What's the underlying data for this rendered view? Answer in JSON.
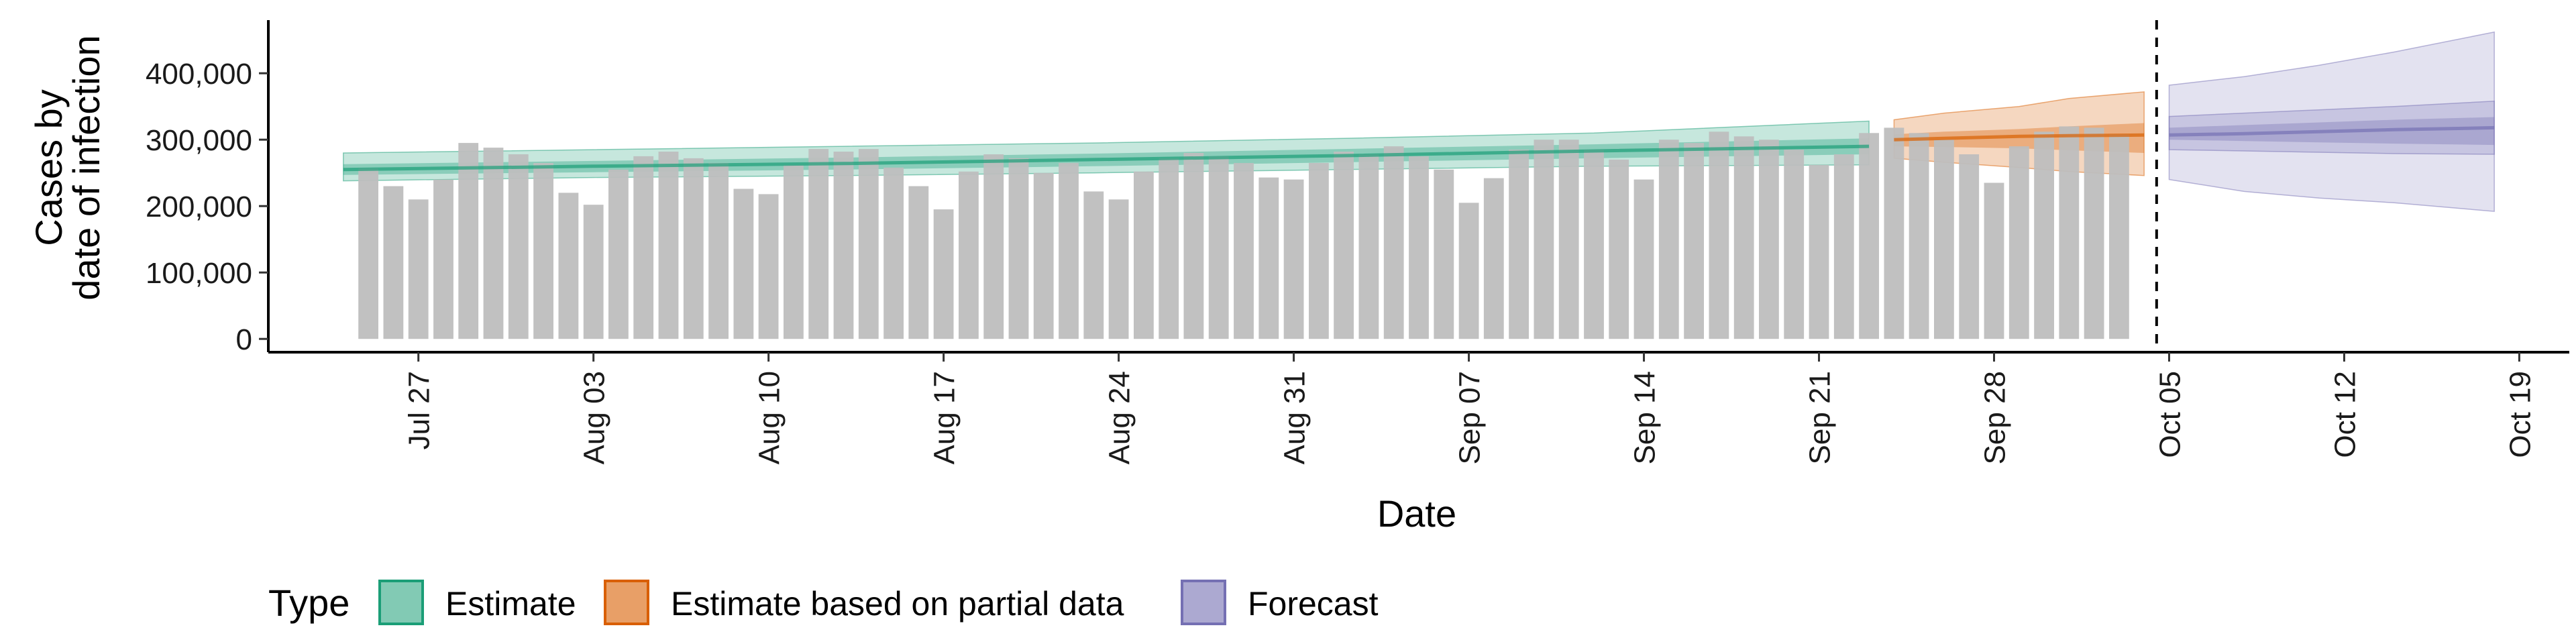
{
  "chart_data": {
    "type": "bar",
    "xlabel": "Date",
    "ylabel_line1": "Cases by",
    "ylabel_line2": "date of infection",
    "x_start": "2020-07-25",
    "x_range": [
      "2020-07-21",
      "2020-10-21"
    ],
    "ylim": [
      -20000,
      480000
    ],
    "y_ticks": [
      0,
      100000,
      200000,
      300000,
      400000
    ],
    "y_tick_labels": [
      "0",
      "100,000",
      "200,000",
      "300,000",
      "400,000"
    ],
    "x_ticks": [
      "2020-07-27",
      "2020-08-03",
      "2020-08-10",
      "2020-08-17",
      "2020-08-24",
      "2020-08-31",
      "2020-09-07",
      "2020-09-14",
      "2020-09-21",
      "2020-09-28",
      "2020-10-05",
      "2020-10-12",
      "2020-10-19"
    ],
    "x_tick_labels": [
      "Jul 27",
      "Aug 03",
      "Aug 10",
      "Aug 17",
      "Aug 24",
      "Aug 31",
      "Sep 07",
      "Sep 14",
      "Sep 21",
      "Sep 28",
      "Oct 05",
      "Oct 12",
      "Oct 19"
    ],
    "cases": [
      257000,
      230000,
      210000,
      240000,
      295000,
      288000,
      278000,
      265000,
      220000,
      202000,
      255000,
      275000,
      282000,
      272000,
      265000,
      226000,
      218000,
      262000,
      286000,
      282000,
      286000,
      258000,
      230000,
      195000,
      252000,
      278000,
      272000,
      250000,
      265000,
      222000,
      210000,
      252000,
      272000,
      280000,
      275000,
      265000,
      243000,
      240000,
      265000,
      282000,
      278000,
      290000,
      275000,
      255000,
      205000,
      242000,
      285000,
      300000,
      300000,
      285000,
      270000,
      240000,
      300000,
      295000,
      312000,
      305000,
      300000,
      285000,
      262000,
      278000,
      310000,
      318000,
      310000,
      300000,
      278000,
      235000,
      290000,
      312000,
      320000,
      318000,
      308000
    ],
    "forecast_cutoff": "2020-10-04",
    "legend_title": "Type",
    "legend_position": "bottom",
    "colors": {
      "bars": "#bebebe",
      "estimate": "#1b9e77",
      "estimate_partial": "#d95f02",
      "forecast": "#7570b3"
    },
    "series": [
      {
        "name": "Estimate",
        "start": "2020-07-24",
        "end": "2020-09-23",
        "median": [
          255000,
          260000,
          264000,
          270000,
          276000,
          283000,
          290000
        ],
        "inner": [
          [
            247000,
            263000
          ],
          [
            251000,
            268000
          ],
          [
            255000,
            273000
          ],
          [
            260000,
            279000
          ],
          [
            266000,
            286000
          ],
          [
            272000,
            293000
          ],
          [
            278000,
            302000
          ]
        ],
        "outer": [
          [
            238000,
            280000
          ],
          [
            243000,
            285000
          ],
          [
            246000,
            290000
          ],
          [
            250000,
            295000
          ],
          [
            255000,
            302000
          ],
          [
            260000,
            310000
          ],
          [
            262000,
            328000
          ]
        ]
      },
      {
        "name": "Estimate based on partial data",
        "start": "2020-09-24",
        "end": "2020-10-04",
        "median": [
          300000,
          302000,
          305000,
          306000,
          307000
        ],
        "inner": [
          [
            290000,
            308000
          ],
          [
            289000,
            312000
          ],
          [
            287000,
            316000
          ],
          [
            284000,
            320000
          ],
          [
            280000,
            325000
          ]
        ],
        "outer": [
          [
            272000,
            330000
          ],
          [
            266000,
            340000
          ],
          [
            258000,
            350000
          ],
          [
            252000,
            362000
          ],
          [
            246000,
            372000
          ]
        ]
      },
      {
        "name": "Forecast",
        "start": "2020-10-05",
        "end": "2020-10-18",
        "median": [
          307000,
          309000,
          312000,
          315000,
          318000
        ],
        "inner": [
          [
            300000,
            318000
          ],
          [
            298000,
            322000
          ],
          [
            296000,
            326000
          ],
          [
            294000,
            330000
          ],
          [
            292000,
            334000
          ]
        ],
        "outer": [
          [
            285000,
            335000
          ],
          [
            283000,
            340000
          ],
          [
            281000,
            345000
          ],
          [
            279000,
            350000
          ],
          [
            278000,
            358000
          ]
        ],
        "outermost": [
          [
            240000,
            382000
          ],
          [
            222000,
            395000
          ],
          [
            212000,
            412000
          ],
          [
            205000,
            432000
          ],
          [
            192000,
            462000
          ]
        ]
      }
    ]
  }
}
